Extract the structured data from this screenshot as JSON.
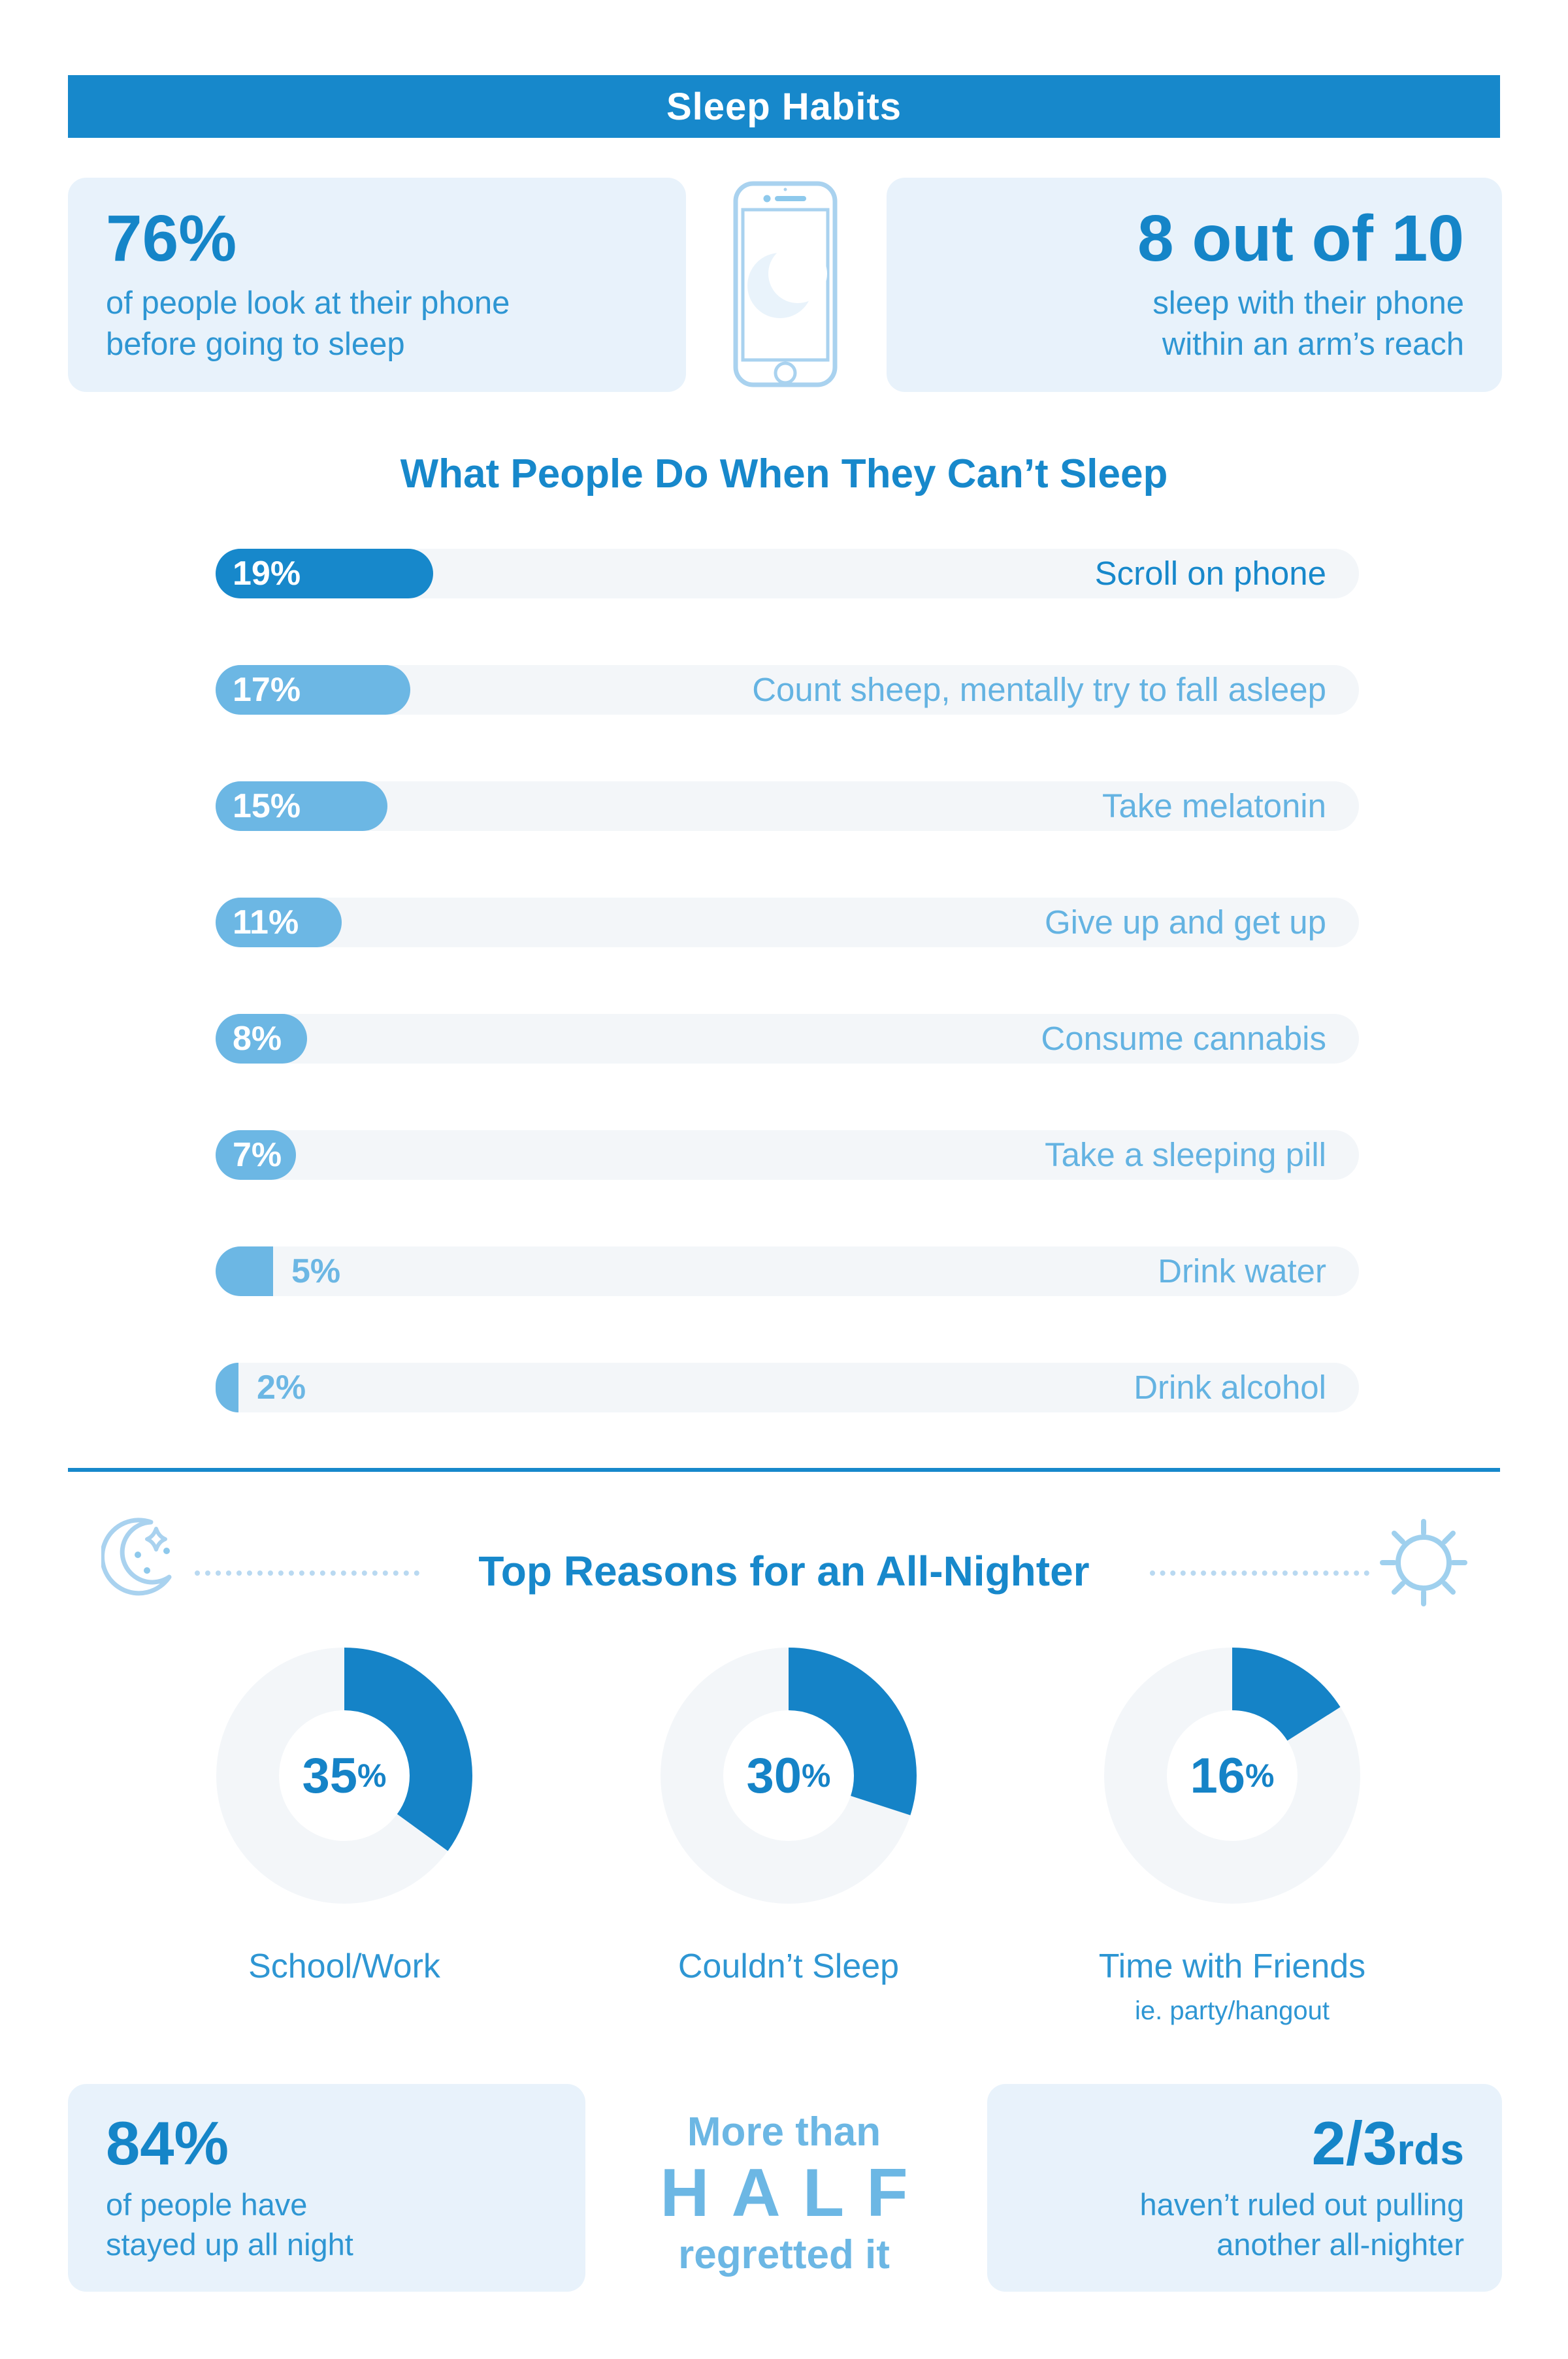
{
  "colors": {
    "primary_blue": "#1788cb",
    "value_blue": "#1585c8",
    "bar_light_blue": "#6cb7e4",
    "body_text_blue": "#2e96d3",
    "donut_blue": "#1583c7",
    "card_bg": "#e8f2fb",
    "track_gray": "#f3f6f9",
    "icon_blue": "#a9d2ef",
    "dotted_line_blue": "#b9d9f1",
    "header_text": "#ffffff"
  },
  "header": {
    "title": "Sleep Habits"
  },
  "top_stats": {
    "left": {
      "value": "76%",
      "line1": "of people look at their phone",
      "line2": "before going to sleep"
    },
    "phone_icon": "phone-with-crescent-moon",
    "right": {
      "value": "8 out of 10",
      "line1": "sleep with their phone",
      "line2": "within an arm’s reach"
    }
  },
  "chart_data": [
    {
      "type": "bar",
      "orientation": "horizontal",
      "title": "What People Do When They Can’t Sleep",
      "unit": "%",
      "xlim": [
        0,
        100
      ],
      "grid": false,
      "categories": [
        "Scroll on phone",
        "Count sheep, mentally try to fall asleep",
        "Take melatonin",
        "Give up and get up",
        "Consume cannabis",
        "Take a sleeping pill",
        "Drink water",
        "Drink alcohol"
      ],
      "values": [
        19,
        17,
        15,
        11,
        8,
        7,
        5,
        2
      ],
      "value_labels": [
        "19%",
        "17%",
        "15%",
        "11%",
        "8%",
        "7%",
        "5%",
        "2%"
      ],
      "highlight_index": 0
    },
    {
      "type": "pie",
      "subtype": "donut",
      "title": "Top Reasons for an All-Nighter",
      "start_angle": "top",
      "direction": "clockwise",
      "slices": [
        {
          "value": 16,
          "remainder": 84,
          "value_label": "16",
          "pct_sign": "%",
          "label": "Time with Friends",
          "sublabel": "ie. party/hangout"
        }
      ],
      "donuts": [
        {
          "value": 35,
          "remainder": 65,
          "value_label": "35",
          "pct_sign": "%",
          "label": "School/Work",
          "sublabel": ""
        },
        {
          "value": 30,
          "remainder": 70,
          "value_label": "30",
          "pct_sign": "%",
          "label": "Couldn’t Sleep",
          "sublabel": ""
        },
        {
          "value": 16,
          "remainder": 84,
          "value_label": "16",
          "pct_sign": "%",
          "label": "Time with Friends",
          "sublabel": "ie. party/hangout"
        }
      ]
    }
  ],
  "bottom_stats": {
    "left": {
      "value": "84%",
      "line1": "of people have",
      "line2": "stayed up all night"
    },
    "middle": {
      "line1": "More than",
      "line2": "HALF",
      "line3": "regretted it"
    },
    "right": {
      "value": "2/3",
      "value_suffix": "rds",
      "line1": "haven’t ruled out pulling",
      "line2": "another all-nighter"
    }
  }
}
